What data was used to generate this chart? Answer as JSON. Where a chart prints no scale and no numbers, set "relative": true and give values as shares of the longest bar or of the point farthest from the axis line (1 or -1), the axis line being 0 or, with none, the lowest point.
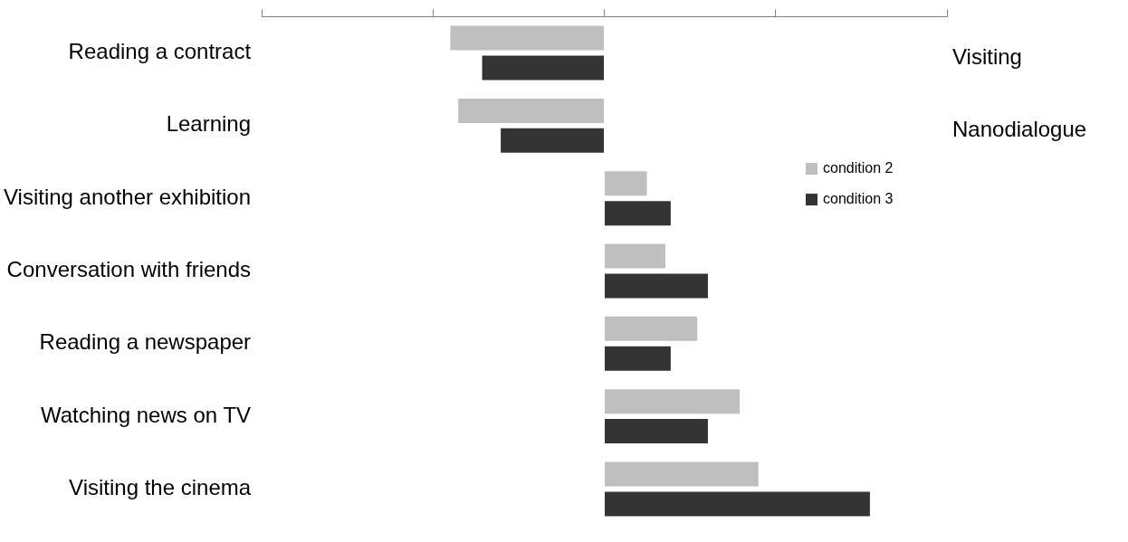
{
  "chart_data": {
    "type": "bar",
    "orientation": "horizontal",
    "relative": true,
    "legend": "right",
    "grid": false,
    "tick_labels": "y",
    "categories": [
      "Reading a contract",
      "Learning",
      "Visiting another exhibition",
      "Conversation with friends",
      "Reading a newspaper",
      "Watching news on TV",
      "Visiting the cinema"
    ],
    "series": [
      {
        "name": "condition 2",
        "color": "#bfbfbf",
        "values": [
          -0.58,
          -0.55,
          0.16,
          0.23,
          0.35,
          0.51,
          0.58
        ]
      },
      {
        "name": "condition 3",
        "color": "#333333",
        "values": [
          -0.46,
          -0.39,
          0.25,
          0.39,
          0.25,
          0.39,
          1
        ]
      }
    ],
    "annotations": [
      "Visiting",
      "Nanodialogue"
    ]
  }
}
